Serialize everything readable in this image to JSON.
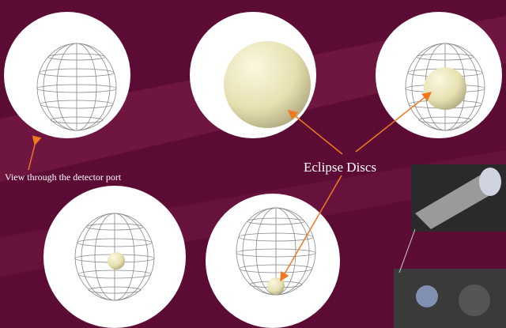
{
  "annotations": {
    "detector_port": "View through the detector port",
    "eclipse_discs": "Eclipse Discs"
  }
}
